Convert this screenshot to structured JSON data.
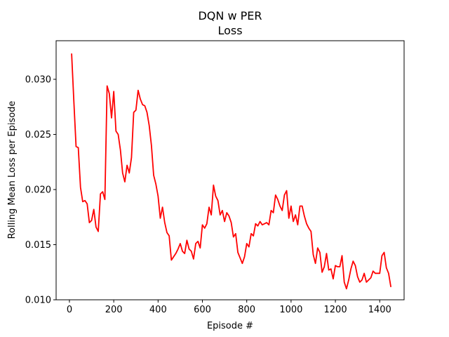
{
  "chart_data": {
    "type": "line",
    "title": "DQN w PER",
    "subtitle": "Loss",
    "xlabel": "Episode #",
    "ylabel": "Rolling Mean Loss per Episode",
    "xlim": [
      -60,
      1510
    ],
    "ylim": [
      0.01,
      0.0335
    ],
    "xticks": [
      0,
      200,
      400,
      600,
      800,
      1000,
      1200,
      1400
    ],
    "yticks": [
      0.01,
      0.015,
      0.02,
      0.025,
      0.03
    ],
    "ytick_labels": [
      "0.010",
      "0.015",
      "0.020",
      "0.025",
      "0.030"
    ],
    "grid": false,
    "series": [
      {
        "color": "#ff0000",
        "x": [
          10,
          20,
          30,
          40,
          50,
          60,
          70,
          80,
          90,
          100,
          110,
          120,
          130,
          140,
          150,
          160,
          170,
          180,
          190,
          200,
          210,
          220,
          230,
          240,
          250,
          260,
          270,
          280,
          290,
          300,
          310,
          320,
          330,
          340,
          350,
          360,
          370,
          380,
          390,
          400,
          410,
          420,
          430,
          440,
          450,
          460,
          470,
          480,
          490,
          500,
          510,
          520,
          530,
          540,
          550,
          560,
          570,
          580,
          590,
          600,
          610,
          620,
          630,
          640,
          650,
          660,
          670,
          680,
          690,
          700,
          710,
          720,
          730,
          740,
          750,
          760,
          770,
          780,
          790,
          800,
          810,
          820,
          830,
          840,
          850,
          860,
          870,
          880,
          890,
          900,
          910,
          920,
          930,
          940,
          950,
          960,
          970,
          980,
          990,
          1000,
          1010,
          1020,
          1030,
          1040,
          1050,
          1060,
          1070,
          1080,
          1090,
          1100,
          1110,
          1120,
          1130,
          1140,
          1150,
          1160,
          1170,
          1180,
          1190,
          1200,
          1210,
          1220,
          1230,
          1240,
          1250,
          1260,
          1270,
          1280,
          1290,
          1300,
          1310,
          1320,
          1330,
          1340,
          1350,
          1360,
          1370,
          1380,
          1390,
          1400,
          1410,
          1420,
          1430,
          1440,
          1450
        ],
        "y": [
          0.0323,
          0.028,
          0.0239,
          0.0238,
          0.0202,
          0.0189,
          0.019,
          0.0187,
          0.017,
          0.0172,
          0.0182,
          0.0166,
          0.0162,
          0.0196,
          0.0198,
          0.0191,
          0.0294,
          0.0287,
          0.0265,
          0.0289,
          0.0253,
          0.025,
          0.0236,
          0.0215,
          0.0207,
          0.0222,
          0.0215,
          0.0229,
          0.027,
          0.0272,
          0.029,
          0.0282,
          0.0277,
          0.0276,
          0.027,
          0.0258,
          0.024,
          0.0213,
          0.0205,
          0.0194,
          0.0174,
          0.0184,
          0.017,
          0.0161,
          0.0158,
          0.0136,
          0.0139,
          0.0142,
          0.0146,
          0.0151,
          0.0144,
          0.0142,
          0.0154,
          0.0146,
          0.0144,
          0.0137,
          0.0151,
          0.0153,
          0.0147,
          0.0168,
          0.0165,
          0.0169,
          0.0184,
          0.0177,
          0.0204,
          0.0194,
          0.019,
          0.0177,
          0.0181,
          0.0171,
          0.0179,
          0.0176,
          0.017,
          0.0157,
          0.016,
          0.0143,
          0.0138,
          0.0133,
          0.0139,
          0.0151,
          0.0148,
          0.016,
          0.0158,
          0.0169,
          0.0167,
          0.0171,
          0.0168,
          0.0169,
          0.017,
          0.0168,
          0.0181,
          0.0179,
          0.0195,
          0.0191,
          0.0185,
          0.0181,
          0.0195,
          0.0199,
          0.0174,
          0.0185,
          0.0171,
          0.0177,
          0.0168,
          0.0185,
          0.0185,
          0.0176,
          0.0169,
          0.0165,
          0.0162,
          0.0141,
          0.0133,
          0.0147,
          0.0143,
          0.0125,
          0.013,
          0.0142,
          0.0127,
          0.0128,
          0.0119,
          0.0131,
          0.013,
          0.013,
          0.014,
          0.0116,
          0.011,
          0.0118,
          0.0128,
          0.0135,
          0.0131,
          0.0121,
          0.0116,
          0.0118,
          0.0124,
          0.0116,
          0.0118,
          0.012,
          0.0126,
          0.0124,
          0.0124,
          0.0124,
          0.014,
          0.0143,
          0.0129,
          0.0124,
          0.0112
        ]
      }
    ]
  }
}
